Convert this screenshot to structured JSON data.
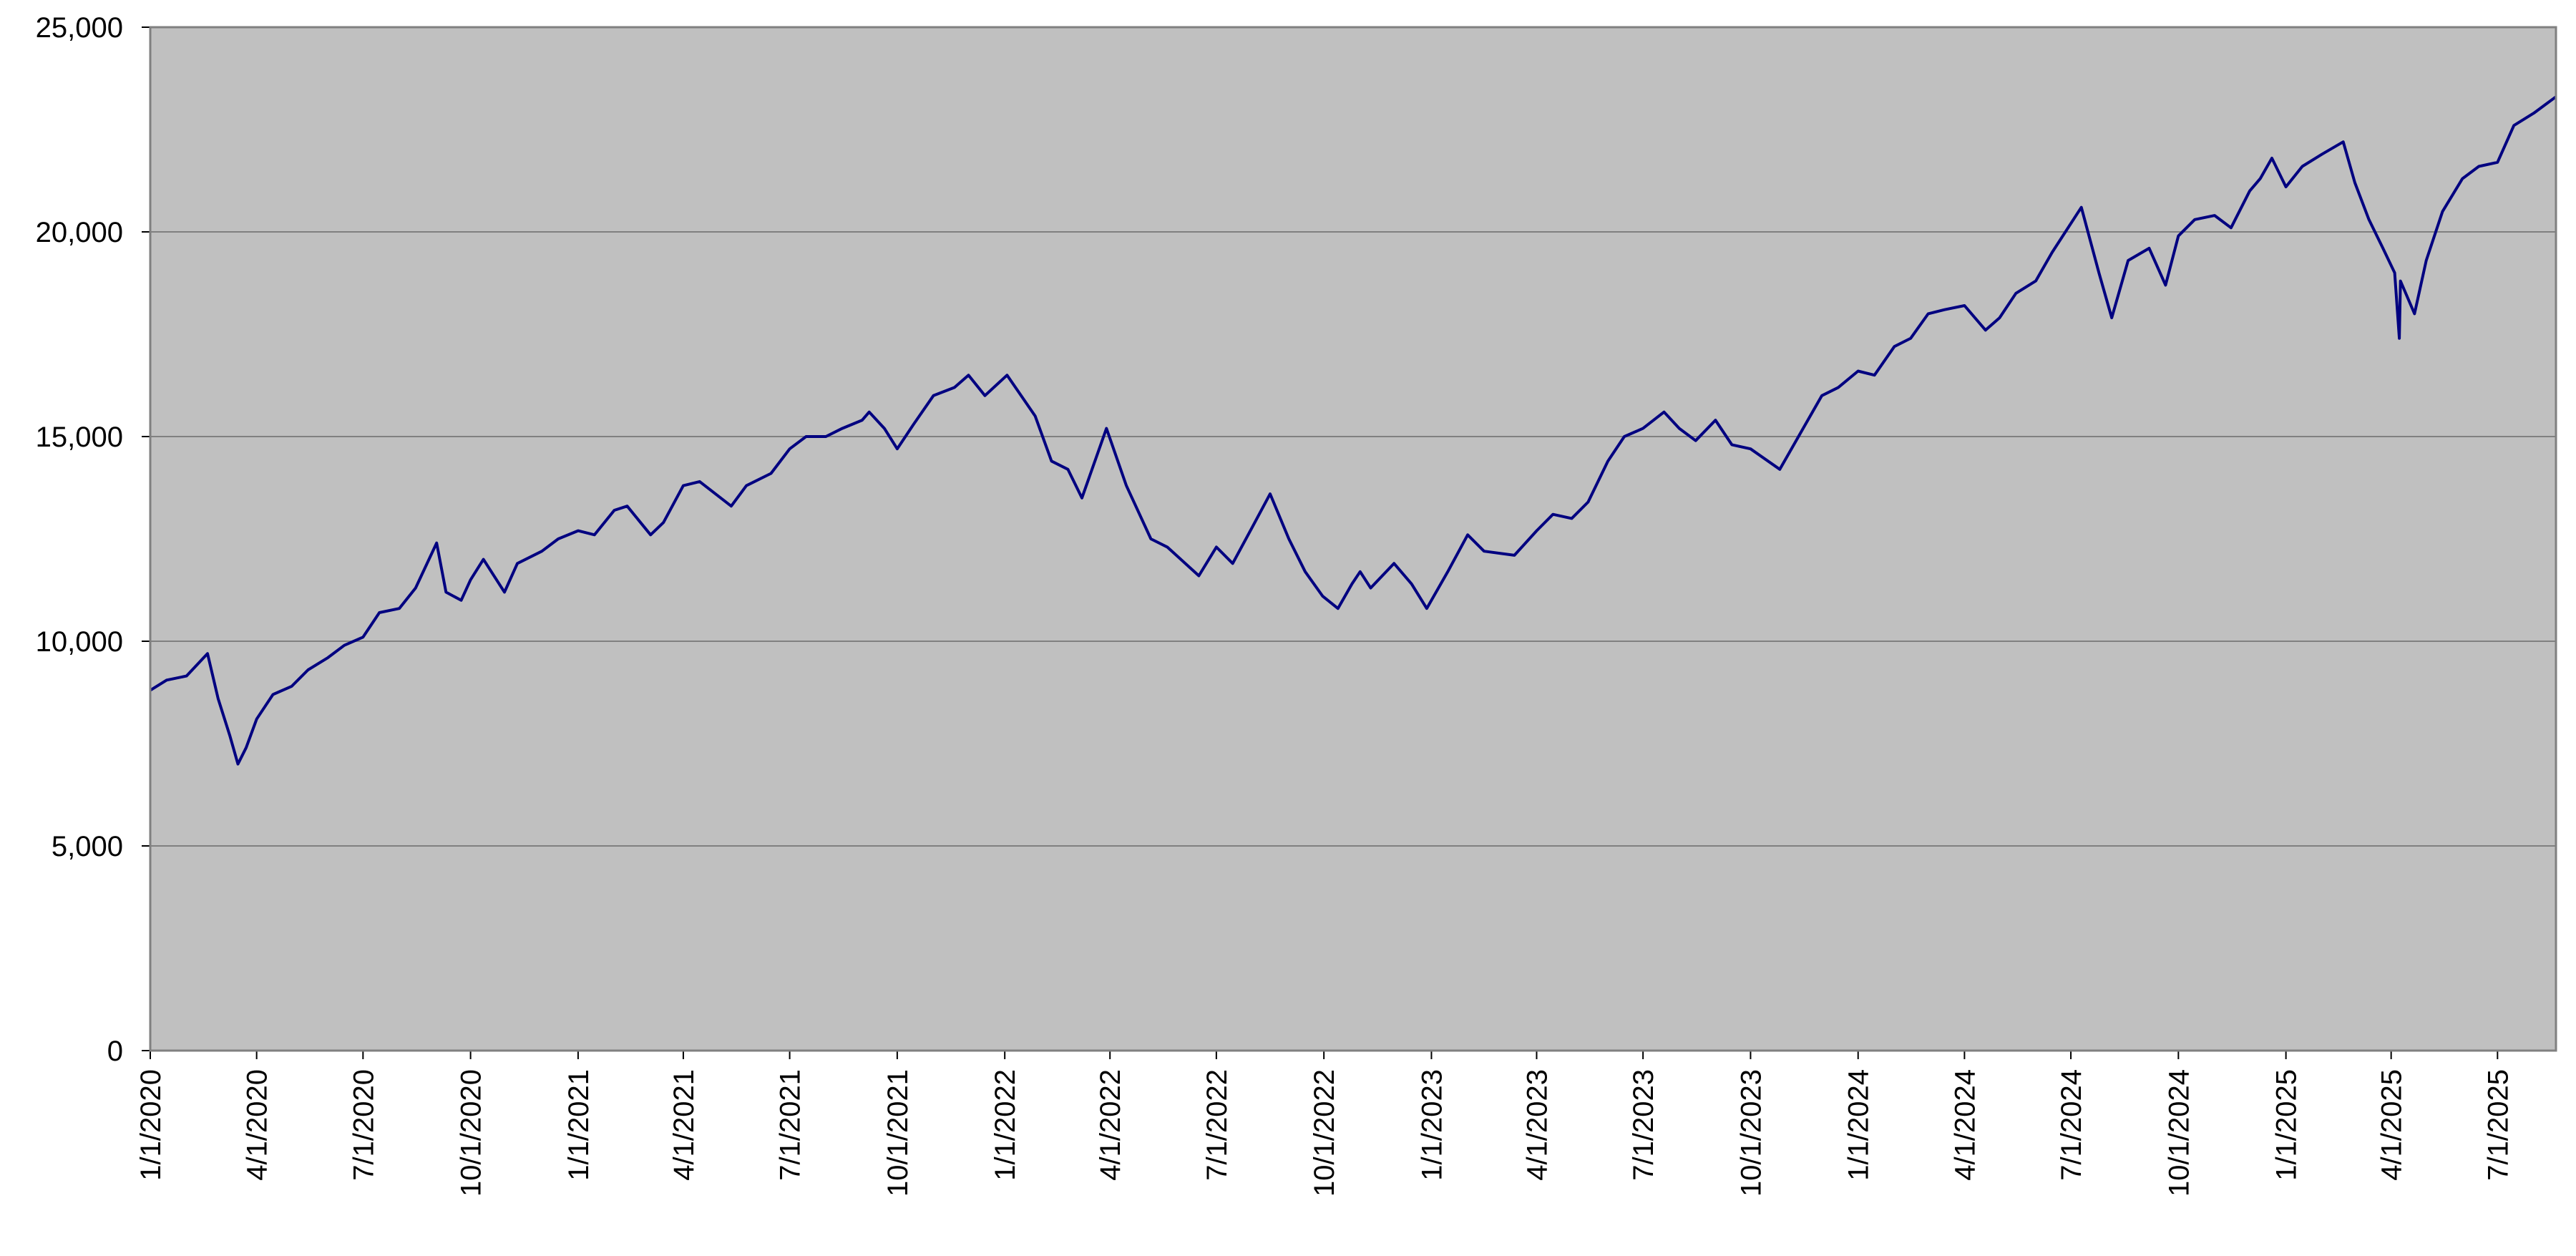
{
  "colors": {
    "plot_background": "#c0c0c0",
    "line": "#000080",
    "gridline": "#808080",
    "axis": "#000000"
  },
  "chart_data": {
    "type": "line",
    "title": "",
    "xlabel": "",
    "ylabel": "",
    "ylim": [
      0,
      25000
    ],
    "xlim": [
      "2020-01-01",
      "2025-08-20"
    ],
    "grid": true,
    "legend": "none",
    "y_ticks": [
      {
        "value": 0,
        "label": "0"
      },
      {
        "value": 5000,
        "label": "5,000"
      },
      {
        "value": 10000,
        "label": "10,000"
      },
      {
        "value": 15000,
        "label": "15,000"
      },
      {
        "value": 20000,
        "label": "20,000"
      },
      {
        "value": 25000,
        "label": "25,000"
      }
    ],
    "x_ticks": [
      {
        "value": "2020-01-01",
        "label": "1/1/2020"
      },
      {
        "value": "2020-04-01",
        "label": "4/1/2020"
      },
      {
        "value": "2020-07-01",
        "label": "7/1/2020"
      },
      {
        "value": "2020-10-01",
        "label": "10/1/2020"
      },
      {
        "value": "2021-01-01",
        "label": "1/1/2021"
      },
      {
        "value": "2021-04-01",
        "label": "4/1/2021"
      },
      {
        "value": "2021-07-01",
        "label": "7/1/2021"
      },
      {
        "value": "2021-10-01",
        "label": "10/1/2021"
      },
      {
        "value": "2022-01-01",
        "label": "1/1/2022"
      },
      {
        "value": "2022-04-01",
        "label": "4/1/2022"
      },
      {
        "value": "2022-07-01",
        "label": "7/1/2022"
      },
      {
        "value": "2022-10-01",
        "label": "10/1/2022"
      },
      {
        "value": "2023-01-01",
        "label": "1/1/2023"
      },
      {
        "value": "2023-04-01",
        "label": "4/1/2023"
      },
      {
        "value": "2023-07-01",
        "label": "7/1/2023"
      },
      {
        "value": "2023-10-01",
        "label": "10/1/2023"
      },
      {
        "value": "2024-01-01",
        "label": "1/1/2024"
      },
      {
        "value": "2024-04-01",
        "label": "4/1/2024"
      },
      {
        "value": "2024-07-01",
        "label": "7/1/2024"
      },
      {
        "value": "2024-10-01",
        "label": "10/1/2024"
      },
      {
        "value": "2025-01-01",
        "label": "1/1/2025"
      },
      {
        "value": "2025-04-01",
        "label": "4/1/2025"
      },
      {
        "value": "2025-07-01",
        "label": "7/1/2025"
      }
    ],
    "series": [
      {
        "x": [
          "2020-01-01",
          "2020-01-15",
          "2020-02-01",
          "2020-02-19",
          "2020-02-28",
          "2020-03-09",
          "2020-03-16",
          "2020-03-23",
          "2020-04-01",
          "2020-04-15",
          "2020-05-01",
          "2020-05-15",
          "2020-06-01",
          "2020-06-15",
          "2020-07-01",
          "2020-07-15",
          "2020-08-01",
          "2020-08-15",
          "2020-09-02",
          "2020-09-10",
          "2020-09-23",
          "2020-10-01",
          "2020-10-12",
          "2020-10-30",
          "2020-11-10",
          "2020-12-01",
          "2020-12-15",
          "2021-01-01",
          "2021-01-15",
          "2021-02-01",
          "2021-02-12",
          "2021-03-04",
          "2021-03-15",
          "2021-04-01",
          "2021-04-15",
          "2021-05-12",
          "2021-05-25",
          "2021-06-15",
          "2021-07-01",
          "2021-07-15",
          "2021-08-01",
          "2021-08-15",
          "2021-09-01",
          "2021-09-07",
          "2021-09-20",
          "2021-10-01",
          "2021-10-15",
          "2021-11-01",
          "2021-11-19",
          "2021-12-01",
          "2021-12-15",
          "2022-01-03",
          "2022-01-27",
          "2022-02-10",
          "2022-02-24",
          "2022-03-08",
          "2022-03-29",
          "2022-04-15",
          "2022-05-06",
          "2022-05-20",
          "2022-06-16",
          "2022-07-01",
          "2022-07-15",
          "2022-08-01",
          "2022-08-16",
          "2022-09-01",
          "2022-09-15",
          "2022-09-30",
          "2022-10-13",
          "2022-10-25",
          "2022-11-01",
          "2022-11-10",
          "2022-11-30",
          "2022-12-15",
          "2022-12-28",
          "2023-01-15",
          "2023-02-01",
          "2023-02-15",
          "2023-03-13",
          "2023-04-01",
          "2023-04-15",
          "2023-05-01",
          "2023-05-15",
          "2023-06-01",
          "2023-06-15",
          "2023-07-01",
          "2023-07-19",
          "2023-08-01",
          "2023-08-15",
          "2023-09-01",
          "2023-09-15",
          "2023-10-01",
          "2023-10-26",
          "2023-11-15",
          "2023-12-01",
          "2023-12-15",
          "2024-01-01",
          "2024-01-15",
          "2024-02-01",
          "2024-02-15",
          "2024-03-01",
          "2024-03-15",
          "2024-04-01",
          "2024-04-19",
          "2024-05-01",
          "2024-05-15",
          "2024-06-01",
          "2024-06-15",
          "2024-07-10",
          "2024-07-25",
          "2024-08-05",
          "2024-08-19",
          "2024-09-06",
          "2024-09-20",
          "2024-10-01",
          "2024-10-15",
          "2024-11-01",
          "2024-11-15",
          "2024-12-01",
          "2024-12-10",
          "2024-12-20",
          "2025-01-01",
          "2025-01-15",
          "2025-02-01",
          "2025-02-19",
          "2025-03-01",
          "2025-03-13",
          "2025-03-25",
          "2025-04-04",
          "2025-04-08",
          "2025-04-09",
          "2025-04-21",
          "2025-05-01",
          "2025-05-15",
          "2025-06-01",
          "2025-06-15",
          "2025-07-01",
          "2025-07-15",
          "2025-08-01",
          "2025-08-20"
        ],
        "y": [
          8800,
          9050,
          9150,
          9700,
          8600,
          7700,
          7000,
          7400,
          8100,
          8700,
          8900,
          9300,
          9600,
          9900,
          10100,
          10700,
          10800,
          11300,
          12400,
          11200,
          11000,
          11500,
          12000,
          11200,
          11900,
          12200,
          12500,
          12700,
          12600,
          13200,
          13300,
          12600,
          12900,
          13800,
          13900,
          13300,
          13800,
          14100,
          14700,
          15000,
          15000,
          15200,
          15400,
          15600,
          15200,
          14700,
          15300,
          16000,
          16200,
          16500,
          16000,
          16500,
          15500,
          14400,
          14200,
          13500,
          15200,
          13800,
          12500,
          12300,
          11600,
          12300,
          11900,
          12800,
          13600,
          12500,
          11700,
          11100,
          10800,
          11400,
          11700,
          11300,
          11900,
          11400,
          10800,
          11700,
          12600,
          12200,
          12100,
          12700,
          13100,
          13000,
          13400,
          14400,
          15000,
          15200,
          15600,
          15200,
          14900,
          15400,
          14800,
          14700,
          14200,
          15200,
          16000,
          16200,
          16600,
          16500,
          17200,
          17400,
          18000,
          18100,
          18200,
          17600,
          17900,
          18500,
          18800,
          19500,
          20600,
          19000,
          17900,
          19300,
          19600,
          18700,
          19900,
          20300,
          20400,
          20100,
          21000,
          21300,
          21800,
          21100,
          21600,
          21900,
          22200,
          21200,
          20300,
          19600,
          19000,
          17400,
          18800,
          18000,
          19300,
          20500,
          21300,
          21600,
          21700,
          22600,
          22900,
          23300
        ]
      }
    ]
  }
}
